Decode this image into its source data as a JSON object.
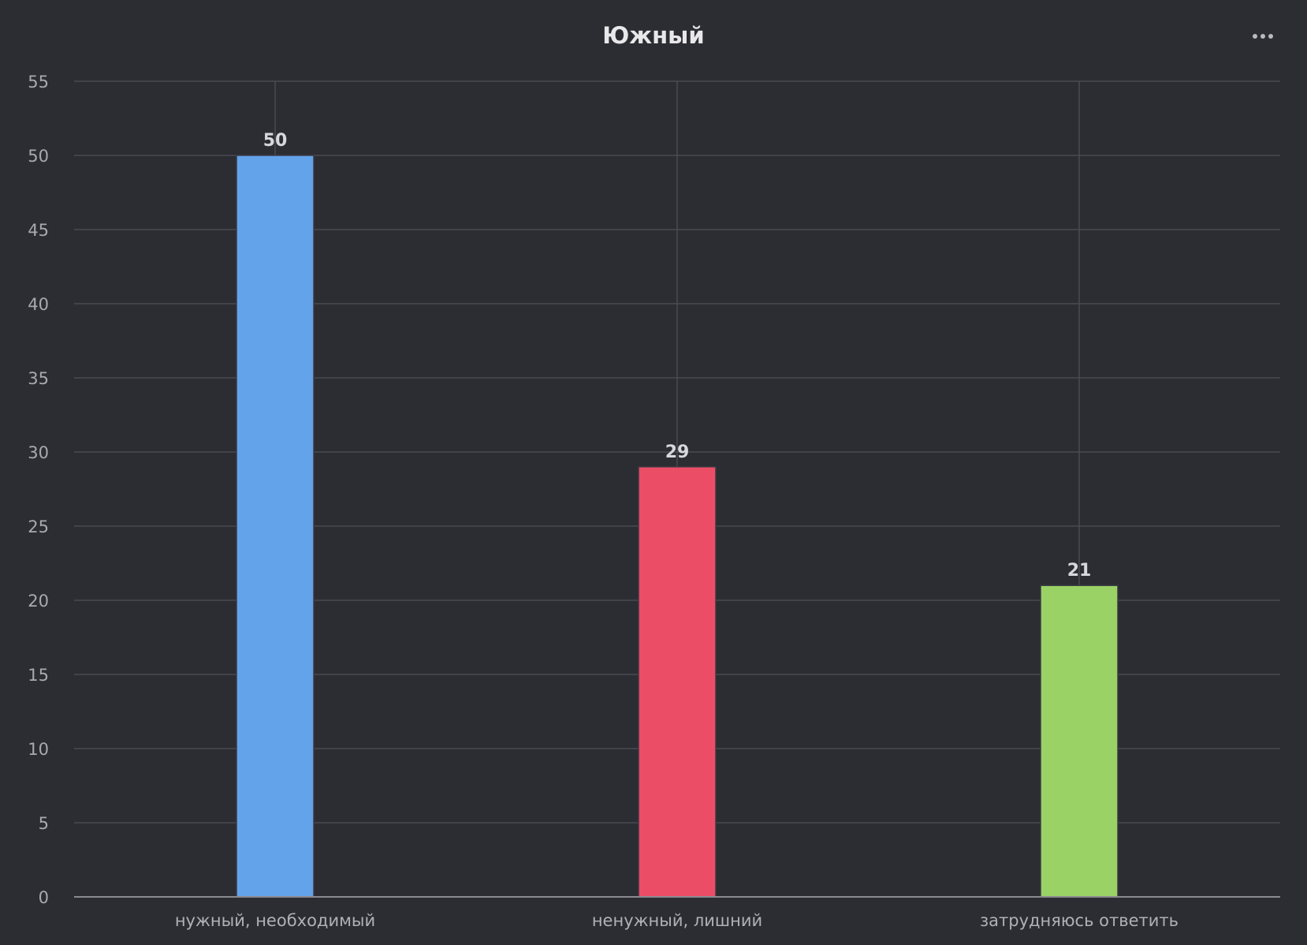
{
  "header": {
    "title": "Южный",
    "menu_icon": "more-horizontal-icon"
  },
  "colors": {
    "background": "#2c2c33",
    "grid": "#4a4a52",
    "axis": "#8a8a90"
  },
  "chart_data": {
    "type": "bar",
    "title": "Южный",
    "xlabel": "",
    "ylabel": "",
    "categories": [
      "нужный, необходимый",
      "ненужный, лишний",
      "затрудняюсь ответить"
    ],
    "values": [
      50,
      29,
      21
    ],
    "bar_colors": [
      "#63a3ea",
      "#eb4d67",
      "#9ad266"
    ],
    "ylim": [
      0,
      55
    ],
    "yticks": [
      0,
      5,
      10,
      15,
      20,
      25,
      30,
      35,
      40,
      45,
      50,
      55
    ],
    "grid": true,
    "legend": "none"
  }
}
